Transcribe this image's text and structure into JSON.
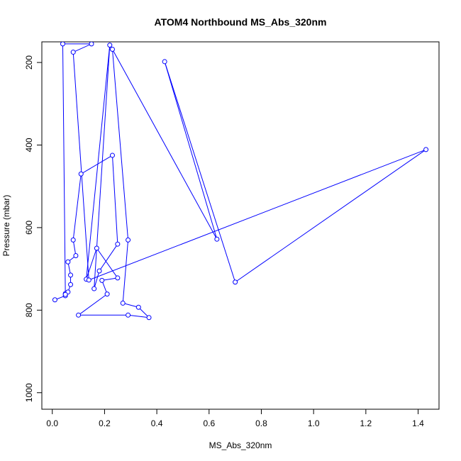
{
  "chart_data": {
    "type": "line",
    "title": "ATOM4 Northbound MS_Abs_320nm",
    "xlabel": "MS_Abs_320nm",
    "ylabel": "Pressure (mbar)",
    "xlim": [
      -0.04,
      1.48
    ],
    "ylim": [
      1040,
      150
    ],
    "y_reversed": true,
    "x_ticks": [
      0.0,
      0.2,
      0.4,
      0.6,
      0.8,
      1.0,
      1.2,
      1.4
    ],
    "x_tick_labels": [
      "0.0",
      "0.2",
      "0.4",
      "0.6",
      "0.8",
      "1.0",
      "1.2",
      "1.4"
    ],
    "y_ticks": [
      200,
      400,
      600,
      800,
      1000
    ],
    "y_tick_labels": [
      "200",
      "400",
      "600",
      "800",
      "1000"
    ],
    "grid": false,
    "series": [
      {
        "color": "#0000ff",
        "marker": "open-circle",
        "points": [
          [
            0.01,
            775
          ],
          [
            0.05,
            765
          ],
          [
            0.05,
            760
          ],
          [
            0.06,
            756
          ],
          [
            0.07,
            738
          ],
          [
            0.07,
            715
          ],
          [
            0.06,
            683
          ],
          [
            0.09,
            668
          ],
          [
            0.08,
            630
          ],
          [
            0.11,
            470
          ],
          [
            0.23,
            425
          ],
          [
            0.25,
            640
          ],
          [
            0.18,
            705
          ],
          [
            0.16,
            748
          ],
          [
            0.22,
            158
          ],
          [
            0.13,
            725
          ],
          [
            0.17,
            650
          ],
          [
            0.25,
            722
          ],
          [
            0.19,
            728
          ],
          [
            0.21,
            761
          ],
          [
            0.1,
            812
          ],
          [
            0.29,
            812
          ],
          [
            0.37,
            818
          ],
          [
            0.33,
            793
          ],
          [
            0.27,
            783
          ],
          [
            0.29,
            630
          ],
          [
            0.23,
            168
          ],
          [
            0.63,
            628
          ],
          [
            0.43,
            198
          ],
          [
            0.7,
            732
          ],
          [
            1.43,
            411
          ],
          [
            0.14,
            727
          ],
          [
            0.08,
            175
          ],
          [
            0.15,
            155
          ],
          [
            0.04,
            155
          ],
          [
            0.05,
            762
          ]
        ]
      }
    ]
  }
}
